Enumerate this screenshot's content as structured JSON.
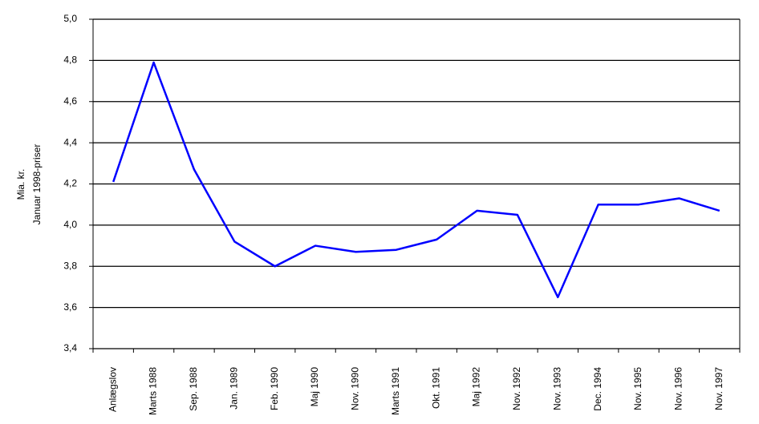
{
  "chart_data": {
    "type": "line",
    "y_label": [
      "Mia. kr.",
      "Januar 1998-priser"
    ],
    "categories": [
      "Anlægslov",
      "Marts 1988",
      "Sep. 1988",
      "Jan. 1989",
      "Feb. 1990",
      "Maj 1990",
      "Nov. 1990",
      "Marts 1991",
      "Okt. 1991",
      "Maj 1992",
      "Nov. 1992",
      "Nov. 1993",
      "Dec. 1994",
      "Nov. 1995",
      "Nov. 1996",
      "Nov. 1997"
    ],
    "series": [
      {
        "color": "#0000ff",
        "values": [
          4.21,
          4.79,
          4.27,
          3.92,
          3.8,
          3.9,
          3.87,
          3.88,
          3.93,
          4.07,
          4.05,
          3.65,
          4.1,
          4.1,
          4.13,
          4.07
        ]
      }
    ],
    "ylim": [
      3.4,
      5.0
    ],
    "yticks": [
      {
        "value": 3.4,
        "label": "3,4"
      },
      {
        "value": 3.6,
        "label": "3,6"
      },
      {
        "value": 3.8,
        "label": "3,8"
      },
      {
        "value": 4.0,
        "label": "4,0"
      },
      {
        "value": 4.2,
        "label": "4,2"
      },
      {
        "value": 4.4,
        "label": "4,4"
      },
      {
        "value": 4.6,
        "label": "4,6"
      },
      {
        "value": 4.8,
        "label": "4,8"
      },
      {
        "value": 5.0,
        "label": "5,0"
      }
    ],
    "grid": true
  }
}
